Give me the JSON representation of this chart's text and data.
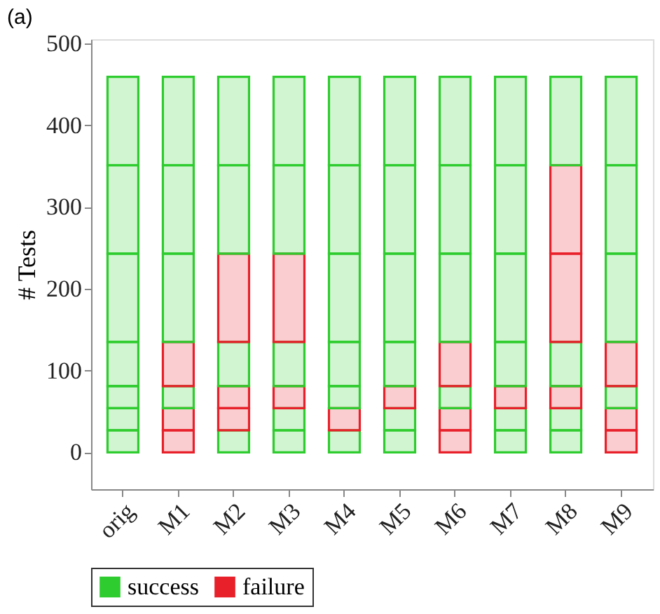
{
  "chart_data": {
    "type": "bar",
    "stacked": true,
    "title": "(a)",
    "ylabel": "# Tests",
    "categories": [
      "orig",
      "M1",
      "M2",
      "M3",
      "M4",
      "M5",
      "M6",
      "M7",
      "M8",
      "M9"
    ],
    "ylim": [
      -45,
      505
    ],
    "yticks": [
      0,
      100,
      200,
      300,
      400,
      500
    ],
    "grid": false,
    "legend": "bottom",
    "series": [
      {
        "name": "success",
        "color": "#2ecc2e",
        "values": [
          27,
          null,
          27,
          27,
          27,
          27,
          null,
          27,
          27,
          null
        ]
      },
      {
        "name": "failure",
        "color": "#e8202a",
        "values": [
          null,
          27,
          null,
          null,
          null,
          null,
          27,
          null,
          null,
          27
        ]
      },
      {
        "color": "#2ecc2e",
        "values": [
          27,
          null,
          null,
          27,
          null,
          27,
          null,
          27,
          27,
          null
        ]
      },
      {
        "color": "#e8202a",
        "values": [
          null,
          27,
          27,
          null,
          27,
          null,
          27,
          null,
          null,
          27
        ]
      },
      {
        "color": "#2ecc2e",
        "values": [
          27,
          27,
          null,
          null,
          27,
          null,
          27,
          null,
          null,
          27
        ]
      },
      {
        "color": "#e8202a",
        "values": [
          null,
          null,
          27,
          27,
          null,
          27,
          null,
          27,
          27,
          null
        ]
      },
      {
        "color": "#2ecc2e",
        "values": [
          54,
          null,
          54,
          54,
          54,
          54,
          null,
          54,
          54,
          null
        ]
      },
      {
        "color": "#e8202a",
        "values": [
          null,
          54,
          null,
          null,
          null,
          null,
          54,
          null,
          null,
          54
        ]
      },
      {
        "color": "#2ecc2e",
        "values": [
          108,
          108,
          null,
          null,
          108,
          108,
          108,
          108,
          null,
          108
        ]
      },
      {
        "color": "#e8202a",
        "values": [
          null,
          null,
          108,
          108,
          null,
          null,
          null,
          null,
          108,
          null
        ]
      },
      {
        "color": "#2ecc2e",
        "values": [
          108,
          108,
          108,
          108,
          108,
          108,
          108,
          108,
          null,
          108
        ]
      },
      {
        "color": "#e8202a",
        "values": [
          null,
          null,
          null,
          null,
          null,
          null,
          null,
          null,
          108,
          null
        ]
      },
      {
        "color": "#2ecc2e",
        "values": [
          108,
          108,
          108,
          108,
          108,
          108,
          108,
          108,
          108,
          108
        ]
      }
    ]
  }
}
